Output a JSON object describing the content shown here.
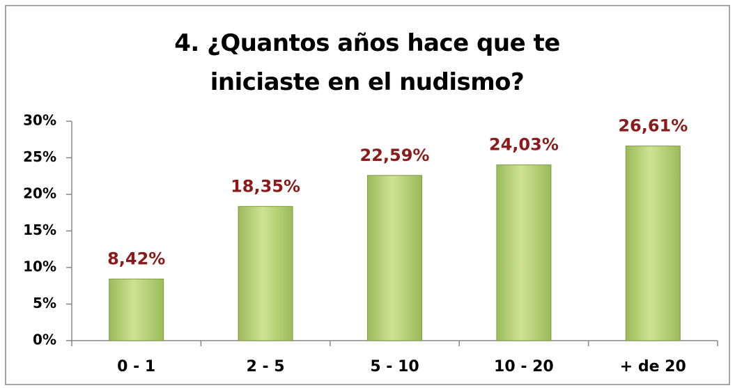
{
  "chart_data": {
    "type": "bar",
    "title": "4. ¿Quantos años hace que te iniciaste en el nudismo?",
    "categories": [
      "0 - 1",
      "2 - 5",
      "5 - 10",
      "10 - 20",
      "+ de 20"
    ],
    "values": [
      8.42,
      18.35,
      22.59,
      24.03,
      26.61
    ],
    "value_labels": [
      "8,42%",
      "18,35%",
      "22,59%",
      "24,03%",
      "26,61%"
    ],
    "color": "#9bbb59",
    "ylim": [
      0,
      30
    ],
    "yticks": [
      {
        "value": 0,
        "label": "0%"
      },
      {
        "value": 5,
        "label": "5%"
      },
      {
        "value": 10,
        "label": "10%"
      },
      {
        "value": 15,
        "label": "15%"
      },
      {
        "value": 20,
        "label": "20%"
      },
      {
        "value": 25,
        "label": "25%"
      },
      {
        "value": 30,
        "label": "30%"
      }
    ],
    "grid": false
  }
}
